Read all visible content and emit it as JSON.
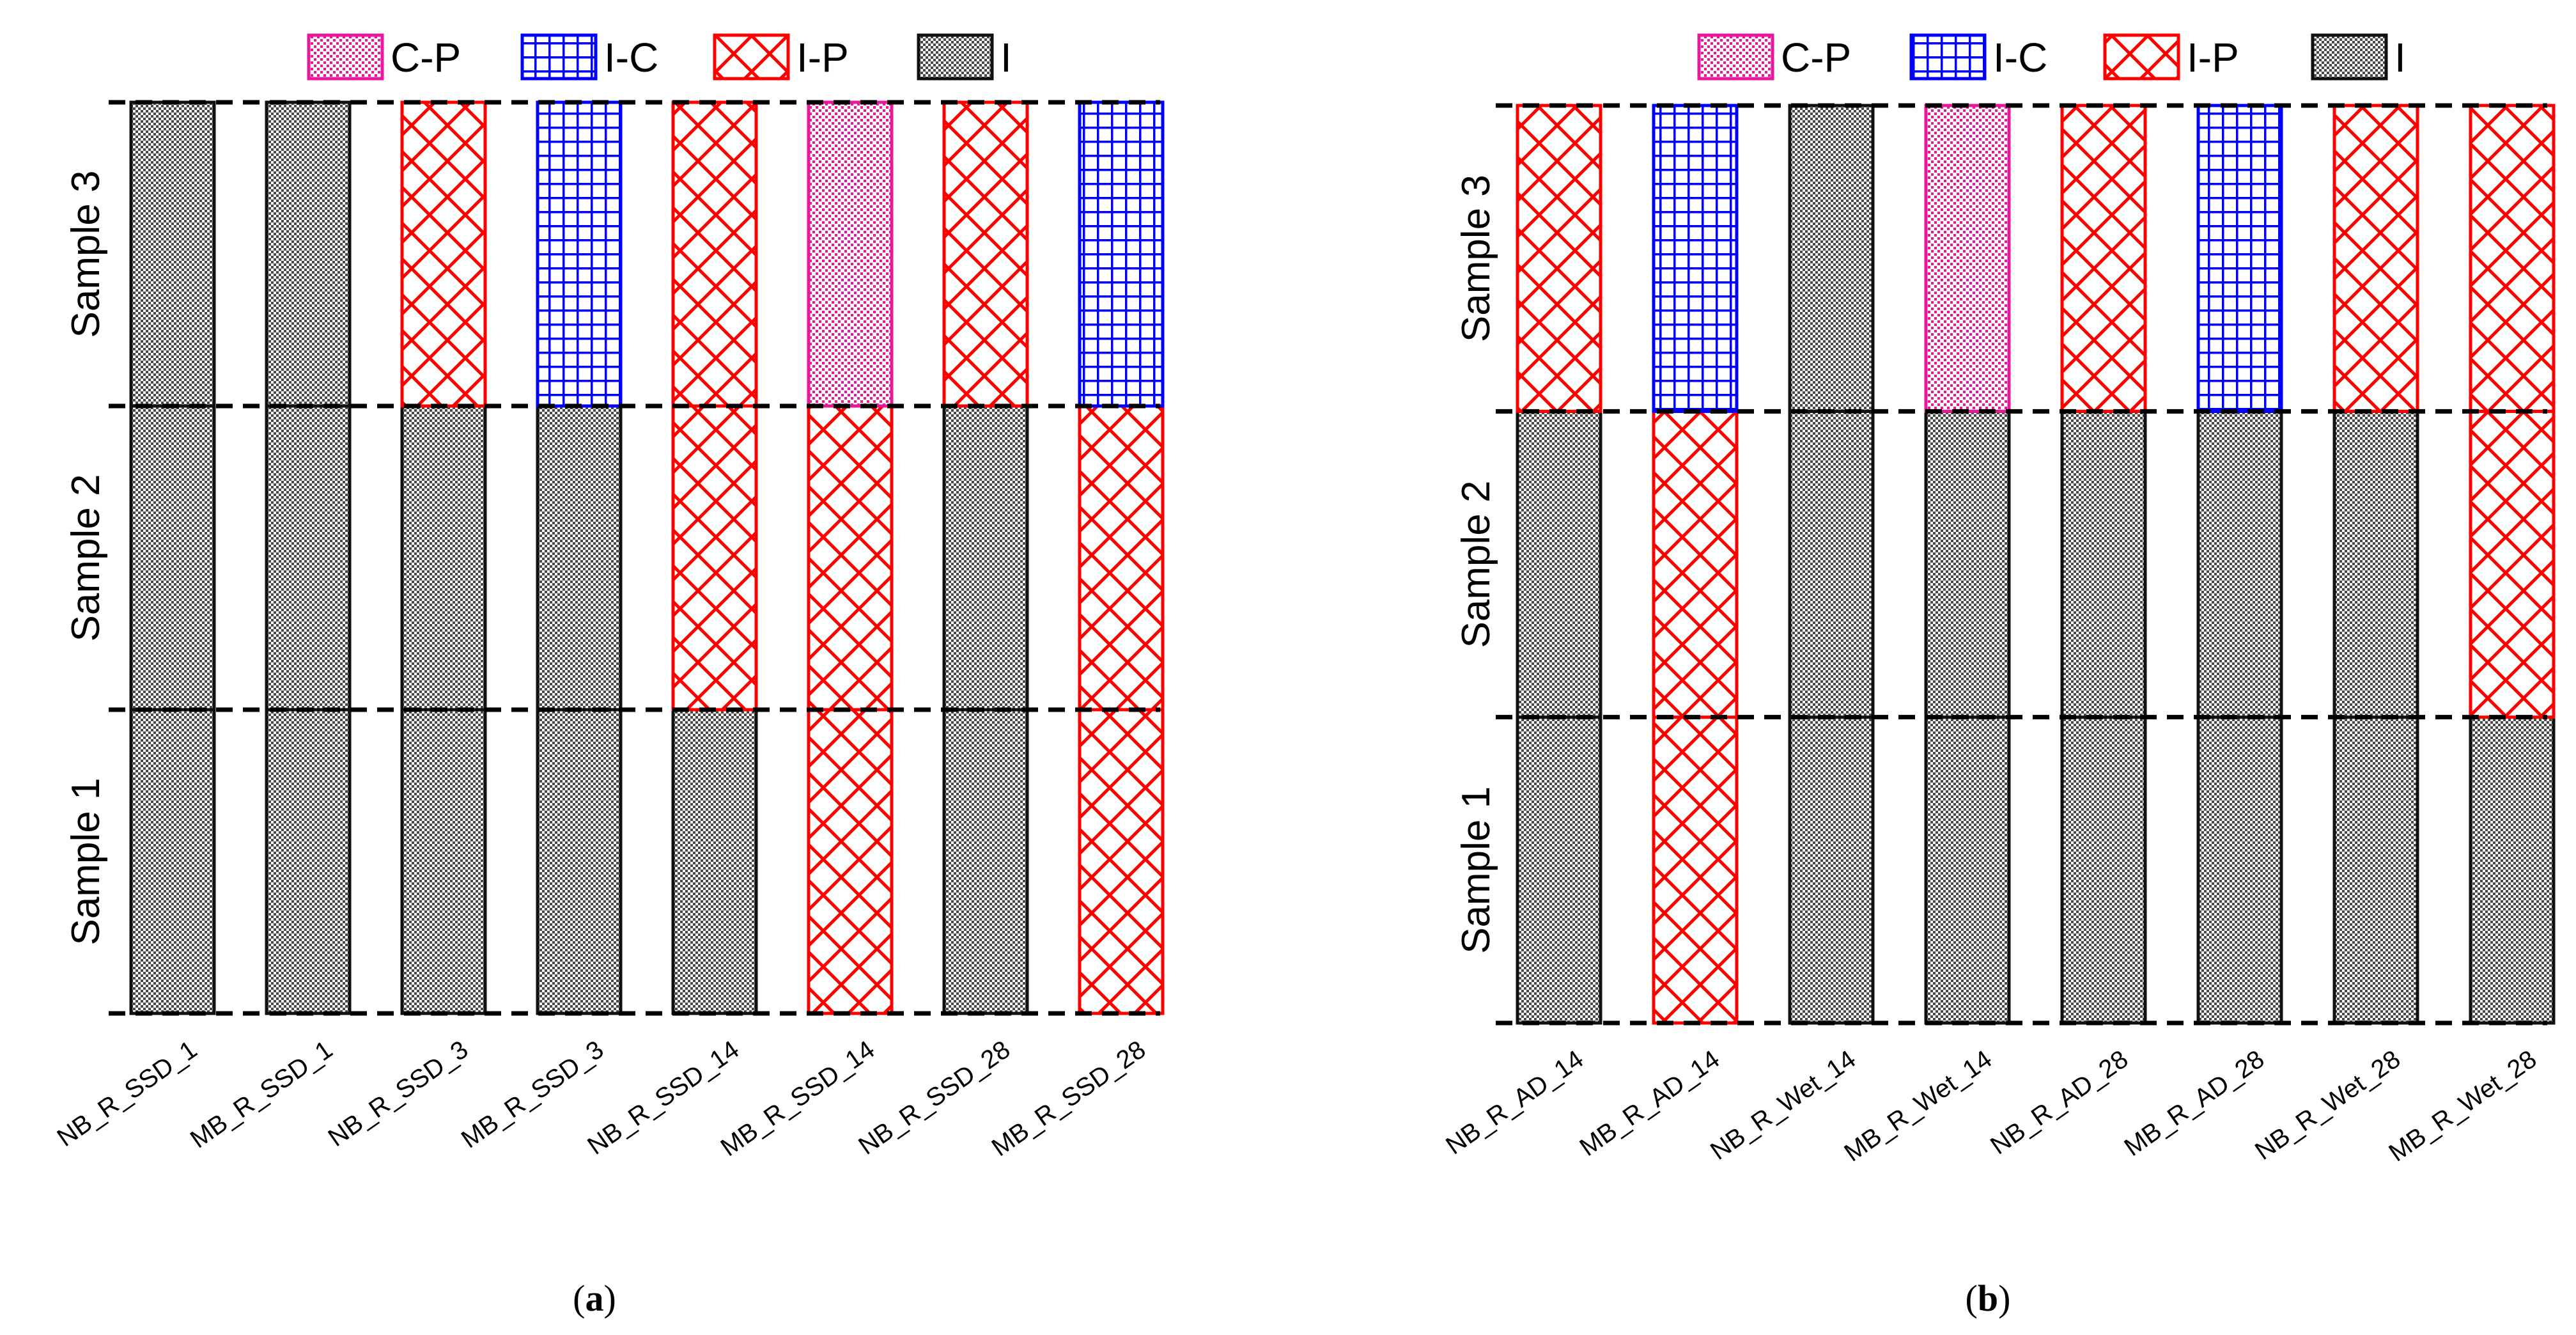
{
  "figure": {
    "legend": [
      {
        "key": "C-P",
        "label": "C-P",
        "pattern": "dots",
        "color": "#e8179b"
      },
      {
        "key": "I-C",
        "label": "I-C",
        "pattern": "grid",
        "color": "#0000ff"
      },
      {
        "key": "I-P",
        "label": "I-P",
        "pattern": "cross",
        "color": "#ff0000"
      },
      {
        "key": "I",
        "label": "I",
        "pattern": "checker",
        "color": "#555555"
      }
    ],
    "row_labels": [
      "Sample 1",
      "Sample 2",
      "Sample 3"
    ]
  },
  "chart_data": [
    {
      "type": "bar",
      "panel": "a",
      "panel_label": "(a)",
      "panel_letter": "a",
      "categories": [
        "NB_R_SSD_1",
        "MB_R_SSD_1",
        "NB_R_SSD_3",
        "MB_R_SSD_3",
        "NB_R_SSD_14",
        "MB_R_SSD_14",
        "NB_R_SSD_28",
        "MB_R_SSD_28"
      ],
      "rows": [
        "Sample 1",
        "Sample 2",
        "Sample 3"
      ],
      "series": [
        {
          "name": "Sample 1",
          "values": [
            "I",
            "I",
            "I",
            "I",
            "I",
            "I-P",
            "I",
            "I-P"
          ]
        },
        {
          "name": "Sample 2",
          "values": [
            "I",
            "I",
            "I",
            "I",
            "I-P",
            "I-P",
            "I",
            "I-P"
          ]
        },
        {
          "name": "Sample 3",
          "values": [
            "I",
            "I",
            "I-P",
            "I-C",
            "I-P",
            "C-P",
            "I-P",
            "I-C"
          ]
        }
      ],
      "legend_position": "top"
    },
    {
      "type": "bar",
      "panel": "b",
      "panel_label": "(b)",
      "panel_letter": "b",
      "categories": [
        "NB_R_AD_14",
        "MB_R_AD_14",
        "NB_R_Wet_14",
        "MB_R_Wet_14",
        "NB_R_AD_28",
        "MB_R_AD_28",
        "NB_R_Wet_28",
        "MB_R_Wet_28"
      ],
      "rows": [
        "Sample 1",
        "Sample 2",
        "Sample 3"
      ],
      "series": [
        {
          "name": "Sample 1",
          "values": [
            "I",
            "I-P",
            "I",
            "I",
            "I",
            "I",
            "I",
            "I"
          ]
        },
        {
          "name": "Sample 2",
          "values": [
            "I",
            "I-P",
            "I",
            "I",
            "I",
            "I",
            "I",
            "I-P"
          ]
        },
        {
          "name": "Sample 3",
          "values": [
            "I-P",
            "I-C",
            "I",
            "C-P",
            "I-P",
            "I-C",
            "I-P",
            "I-P"
          ]
        }
      ],
      "legend_position": "top"
    }
  ]
}
